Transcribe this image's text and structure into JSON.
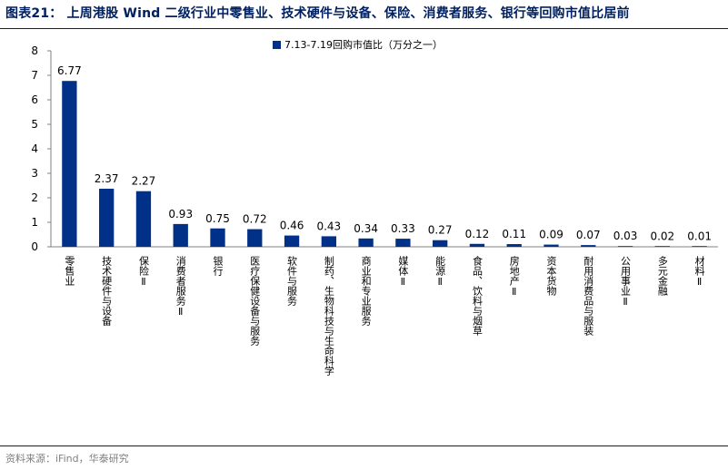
{
  "header": {
    "title": "图表21：  上周港股 Wind 二级行业中零售业、技术硬件与设备、保险、消费者服务、银行等回购市值比居前"
  },
  "footer": {
    "source": "资料来源：iFind，华泰研究"
  },
  "colors": {
    "bar": "#003087",
    "title": "#002060",
    "axis": "#808080"
  },
  "chart_data": {
    "type": "bar",
    "title": "",
    "xlabel": "",
    "ylabel": "",
    "ylim": [
      0,
      8
    ],
    "yticks": [
      0,
      1,
      2,
      3,
      4,
      5,
      6,
      7,
      8
    ],
    "grid": false,
    "legend_position": "top-center",
    "categories": [
      "零售业",
      "技术硬件与设备",
      "保险Ⅱ",
      "消费者服务Ⅱ",
      "银行",
      "医疗保健设备与服务",
      "软件与服务",
      "制药、生物科技与生命科学",
      "商业和专业服务",
      "媒体Ⅱ",
      "能源Ⅱ",
      "食品、饮料与烟草",
      "房地产Ⅱ",
      "资本货物",
      "耐用消费品与服装",
      "公用事业Ⅱ",
      "多元金融",
      "材料Ⅱ"
    ],
    "series": [
      {
        "name": "7.13-7.19回购市值比（万分之一）",
        "values": [
          6.77,
          2.37,
          2.27,
          0.93,
          0.75,
          0.72,
          0.46,
          0.43,
          0.34,
          0.33,
          0.27,
          0.12,
          0.11,
          0.09,
          0.07,
          0.03,
          0.02,
          0.01
        ],
        "labels": [
          "6.77",
          "2.37",
          "2.27",
          "0.93",
          "0.75",
          "0.72",
          "0.46",
          "0.43",
          "0.34",
          "0.33",
          "0.27",
          "0.12",
          "0.11",
          "0.09",
          "0.07",
          "0.03",
          "0.02",
          "0.01"
        ]
      }
    ]
  }
}
